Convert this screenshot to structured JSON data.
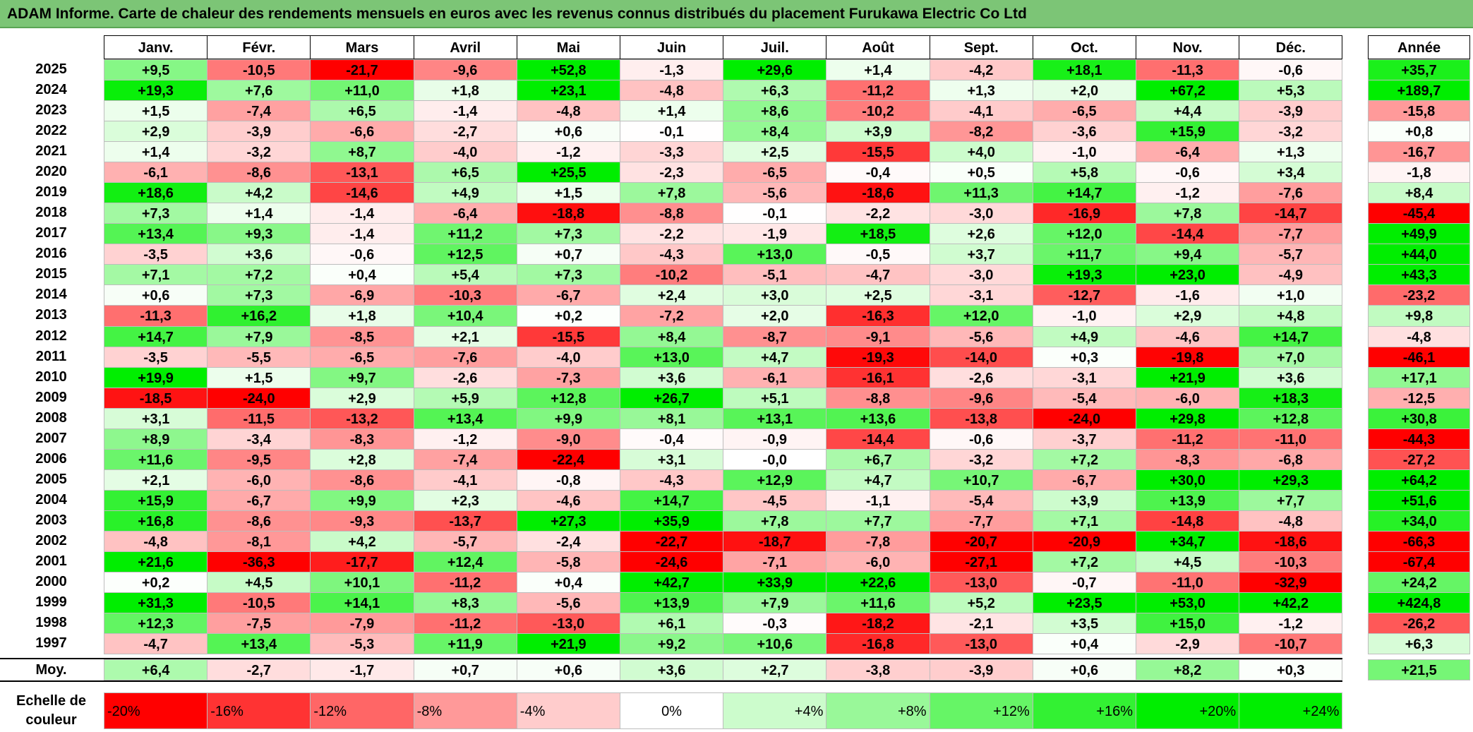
{
  "title": "ADAM Informe. Carte de chaleur des rendements mensuels en euros avec les revenus connus distribués du placement Furukawa Electric Co Ltd",
  "colors": {
    "title_bg": "#7cc576",
    "neg_max": "#ff0000",
    "zero": "#ffffff",
    "pos_max": "#00ee00"
  },
  "chart_data": {
    "type": "heatmap",
    "title": "ADAM Informe. Carte de chaleur des rendements mensuels en euros avec les revenus connus distribués du placement Furukawa Electric Co Ltd",
    "months": [
      "Janv.",
      "Févr.",
      "Mars",
      "Avril",
      "Mai",
      "Juin",
      "Juil.",
      "Août",
      "Sept.",
      "Oct.",
      "Nov.",
      "Déc."
    ],
    "year_label": "Année",
    "rows": [
      {
        "year": "2025",
        "values": [
          "+9,5",
          "-10,5",
          "-21,7",
          "-9,6",
          "+52,8",
          "-1,3",
          "+29,6",
          "+1,4",
          "-4,2",
          "+18,1",
          "-11,3",
          "-0,6"
        ],
        "annual": "+35,7"
      },
      {
        "year": "2024",
        "values": [
          "+19,3",
          "+7,6",
          "+11,0",
          "+1,8",
          "+23,1",
          "-4,8",
          "+6,3",
          "-11,2",
          "+1,3",
          "+2,0",
          "+67,2",
          "+5,3"
        ],
        "annual": "+189,7"
      },
      {
        "year": "2023",
        "values": [
          "+1,5",
          "-7,4",
          "+6,5",
          "-1,4",
          "-4,8",
          "+1,4",
          "+8,6",
          "-10,2",
          "-4,1",
          "-6,5",
          "+4,4",
          "-3,9"
        ],
        "annual": "-15,8"
      },
      {
        "year": "2022",
        "values": [
          "+2,9",
          "-3,9",
          "-6,6",
          "-2,7",
          "+0,6",
          "-0,1",
          "+8,4",
          "+3,9",
          "-8,2",
          "-3,6",
          "+15,9",
          "-3,2"
        ],
        "annual": "+0,8"
      },
      {
        "year": "2021",
        "values": [
          "+1,4",
          "-3,2",
          "+8,7",
          "-4,0",
          "-1,2",
          "-3,3",
          "+2,5",
          "-15,5",
          "+4,0",
          "-1,0",
          "-6,4",
          "+1,3"
        ],
        "annual": "-16,7"
      },
      {
        "year": "2020",
        "values": [
          "-6,1",
          "-8,6",
          "-13,1",
          "+6,5",
          "+25,5",
          "-2,3",
          "-6,5",
          "-0,4",
          "+0,5",
          "+5,8",
          "-0,6",
          "+3,4"
        ],
        "annual": "-1,8"
      },
      {
        "year": "2019",
        "values": [
          "+18,6",
          "+4,2",
          "-14,6",
          "+4,9",
          "+1,5",
          "+7,8",
          "-5,6",
          "-18,6",
          "+11,3",
          "+14,7",
          "-1,2",
          "-7,6"
        ],
        "annual": "+8,4"
      },
      {
        "year": "2018",
        "values": [
          "+7,3",
          "+1,4",
          "-1,4",
          "-6,4",
          "-18,8",
          "-8,8",
          "-0,1",
          "-2,2",
          "-3,0",
          "-16,9",
          "+7,8",
          "-14,7"
        ],
        "annual": "-45,4"
      },
      {
        "year": "2017",
        "values": [
          "+13,4",
          "+9,3",
          "-1,4",
          "+11,2",
          "+7,3",
          "-2,2",
          "-1,9",
          "+18,5",
          "+2,6",
          "+12,0",
          "-14,4",
          "-7,7"
        ],
        "annual": "+49,9"
      },
      {
        "year": "2016",
        "values": [
          "-3,5",
          "+3,6",
          "-0,6",
          "+12,5",
          "+0,7",
          "-4,3",
          "+13,0",
          "-0,5",
          "+3,7",
          "+11,7",
          "+9,4",
          "-5,7"
        ],
        "annual": "+44,0"
      },
      {
        "year": "2015",
        "values": [
          "+7,1",
          "+7,2",
          "+0,4",
          "+5,4",
          "+7,3",
          "-10,2",
          "-5,1",
          "-4,7",
          "-3,0",
          "+19,3",
          "+23,0",
          "-4,9"
        ],
        "annual": "+43,3"
      },
      {
        "year": "2014",
        "values": [
          "+0,6",
          "+7,3",
          "-6,9",
          "-10,3",
          "-6,7",
          "+2,4",
          "+3,0",
          "+2,5",
          "-3,1",
          "-12,7",
          "-1,6",
          "+1,0"
        ],
        "annual": "-23,2"
      },
      {
        "year": "2013",
        "values": [
          "-11,3",
          "+16,2",
          "+1,8",
          "+10,4",
          "+0,2",
          "-7,2",
          "+2,0",
          "-16,3",
          "+12,0",
          "-1,0",
          "+2,9",
          "+4,8"
        ],
        "annual": "+9,8"
      },
      {
        "year": "2012",
        "values": [
          "+14,7",
          "+7,9",
          "-8,5",
          "+2,1",
          "-15,5",
          "+8,4",
          "-8,7",
          "-9,1",
          "-5,6",
          "+4,9",
          "-4,6",
          "+14,7"
        ],
        "annual": "-4,8"
      },
      {
        "year": "2011",
        "values": [
          "-3,5",
          "-5,5",
          "-6,5",
          "-7,6",
          "-4,0",
          "+13,0",
          "+4,7",
          "-19,3",
          "-14,0",
          "+0,3",
          "-19,8",
          "+7,0"
        ],
        "annual": "-46,1"
      },
      {
        "year": "2010",
        "values": [
          "+19,9",
          "+1,5",
          "+9,7",
          "-2,6",
          "-7,3",
          "+3,6",
          "-6,1",
          "-16,1",
          "-2,6",
          "-3,1",
          "+21,9",
          "+3,6"
        ],
        "annual": "+17,1"
      },
      {
        "year": "2009",
        "values": [
          "-18,5",
          "-24,0",
          "+2,9",
          "+5,9",
          "+12,8",
          "+26,7",
          "+5,1",
          "-8,8",
          "-9,6",
          "-5,4",
          "-6,0",
          "+18,3"
        ],
        "annual": "-12,5"
      },
      {
        "year": "2008",
        "values": [
          "+3,1",
          "-11,5",
          "-13,2",
          "+13,4",
          "+9,9",
          "+8,1",
          "+13,1",
          "+13,6",
          "-13,8",
          "-24,0",
          "+29,8",
          "+12,8"
        ],
        "annual": "+30,8"
      },
      {
        "year": "2007",
        "values": [
          "+8,9",
          "-3,4",
          "-8,3",
          "-1,2",
          "-9,0",
          "-0,4",
          "-0,9",
          "-14,4",
          "-0,6",
          "-3,7",
          "-11,2",
          "-11,0"
        ],
        "annual": "-44,3"
      },
      {
        "year": "2006",
        "values": [
          "+11,6",
          "-9,5",
          "+2,8",
          "-7,4",
          "-22,4",
          "+3,1",
          "-0,0",
          "+6,7",
          "-3,2",
          "+7,2",
          "-8,3",
          "-6,8"
        ],
        "annual": "-27,2"
      },
      {
        "year": "2005",
        "values": [
          "+2,1",
          "-6,0",
          "-8,6",
          "-4,1",
          "-0,8",
          "-4,3",
          "+12,9",
          "+4,7",
          "+10,7",
          "-6,7",
          "+30,0",
          "+29,3"
        ],
        "annual": "+64,2"
      },
      {
        "year": "2004",
        "values": [
          "+15,9",
          "-6,7",
          "+9,9",
          "+2,3",
          "-4,6",
          "+14,7",
          "-4,5",
          "-1,1",
          "-5,4",
          "+3,9",
          "+13,9",
          "+7,7"
        ],
        "annual": "+51,6"
      },
      {
        "year": "2003",
        "values": [
          "+16,8",
          "-8,6",
          "-9,3",
          "-13,7",
          "+27,3",
          "+35,9",
          "+7,8",
          "+7,7",
          "-7,7",
          "+7,1",
          "-14,8",
          "-4,8"
        ],
        "annual": "+34,0"
      },
      {
        "year": "2002",
        "values": [
          "-4,8",
          "-8,1",
          "+4,2",
          "-5,7",
          "-2,4",
          "-22,7",
          "-18,7",
          "-7,8",
          "-20,7",
          "-20,9",
          "+34,7",
          "-18,6"
        ],
        "annual": "-66,3"
      },
      {
        "year": "2001",
        "values": [
          "+21,6",
          "-36,3",
          "-17,7",
          "+12,4",
          "-5,8",
          "-24,6",
          "-7,1",
          "-6,0",
          "-27,1",
          "+7,2",
          "+4,5",
          "-10,3"
        ],
        "annual": "-67,4"
      },
      {
        "year": "2000",
        "values": [
          "+0,2",
          "+4,5",
          "+10,1",
          "-11,2",
          "+0,4",
          "+42,7",
          "+33,9",
          "+22,6",
          "-13,0",
          "-0,7",
          "-11,0",
          "-32,9"
        ],
        "annual": "+24,2"
      },
      {
        "year": "1999",
        "values": [
          "+31,3",
          "-10,5",
          "+14,1",
          "+8,3",
          "-5,6",
          "+13,9",
          "+7,9",
          "+11,6",
          "+5,2",
          "+23,5",
          "+53,0",
          "+42,2"
        ],
        "annual": "+424,8"
      },
      {
        "year": "1998",
        "values": [
          "+12,3",
          "-7,5",
          "-7,9",
          "-11,2",
          "-13,0",
          "+6,1",
          "-0,3",
          "-18,2",
          "-2,1",
          "+3,5",
          "+15,0",
          "-1,2"
        ],
        "annual": "-26,2"
      },
      {
        "year": "1997",
        "values": [
          "-4,7",
          "+13,4",
          "-5,3",
          "+11,9",
          "+21,9",
          "+9,2",
          "+10,6",
          "-16,8",
          "-13,0",
          "+0,4",
          "-2,9",
          "-10,7"
        ],
        "annual": "+6,3"
      }
    ],
    "average": {
      "label": "Moy.",
      "values": [
        "+6,4",
        "-2,7",
        "-1,7",
        "+0,7",
        "+0,6",
        "+3,6",
        "+2,7",
        "-3,8",
        "-3,9",
        "+0,6",
        "+8,2",
        "+0,3"
      ],
      "annual": "+21,5"
    },
    "scale": {
      "label_line1": "Echelle de",
      "label_line2": "couleur",
      "steps": [
        "-20%",
        "-16%",
        "-12%",
        "-8%",
        "-4%",
        "0%",
        "+4%",
        "+8%",
        "+12%",
        "+16%",
        "+20%",
        "+24%"
      ],
      "step_values": [
        -20,
        -16,
        -12,
        -8,
        -4,
        0,
        4,
        8,
        12,
        16,
        20,
        24
      ]
    }
  }
}
